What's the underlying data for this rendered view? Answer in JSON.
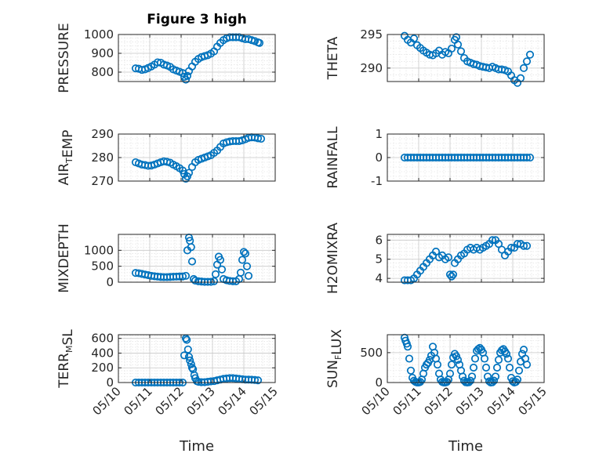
{
  "figure": {
    "title": "Figure 3 high",
    "xlabel": "Time"
  },
  "colors": {
    "marker": "#0072BD",
    "axis": "#262626"
  },
  "xtick_labels": [
    "05/10",
    "05/11",
    "05/12",
    "05/13",
    "05/14",
    "05/15"
  ],
  "panels": [
    {
      "id": "pressure",
      "ylabel_parts": [
        [
          "PRESSURE",
          ""
        ]
      ]
    },
    {
      "id": "theta",
      "ylabel_parts": [
        [
          "THETA",
          ""
        ]
      ]
    },
    {
      "id": "air-temp",
      "ylabel_parts": [
        [
          "AIR",
          ""
        ],
        [
          "T",
          "sub"
        ],
        [
          "EMP",
          ""
        ]
      ]
    },
    {
      "id": "rainfall",
      "ylabel_parts": [
        [
          "RAINFALL",
          ""
        ]
      ]
    },
    {
      "id": "mixdepth",
      "ylabel_parts": [
        [
          "MIXDEPTH",
          ""
        ]
      ]
    },
    {
      "id": "h2omixra",
      "ylabel_parts": [
        [
          "H2OMIXRA",
          ""
        ]
      ]
    },
    {
      "id": "terr-msl",
      "ylabel_parts": [
        [
          "TERR",
          ""
        ],
        [
          "M",
          "sub"
        ],
        [
          "SL",
          ""
        ]
      ]
    },
    {
      "id": "sun-flux",
      "ylabel_parts": [
        [
          "SUN",
          ""
        ],
        [
          "F",
          "sub"
        ],
        [
          "LUX",
          ""
        ]
      ]
    }
  ],
  "chart_data": [
    {
      "type": "scatter",
      "ylabel": "PRESSURE",
      "title": "Figure 3 high",
      "xlim": [
        0,
        5
      ],
      "ylim": [
        750,
        1000
      ],
      "yticks": [
        800,
        900,
        1000
      ],
      "grid": true,
      "x": [
        0.55,
        0.65,
        0.75,
        0.85,
        0.95,
        1.05,
        1.15,
        1.25,
        1.35,
        1.45,
        1.55,
        1.65,
        1.75,
        1.85,
        1.95,
        2.05,
        2.1,
        2.15,
        2.2,
        2.25,
        2.35,
        2.45,
        2.55,
        2.65,
        2.75,
        2.85,
        2.95,
        3.05,
        3.15,
        3.25,
        3.35,
        3.45,
        3.55,
        3.65,
        3.75,
        3.85,
        3.95,
        4.05,
        4.15,
        4.25,
        4.35,
        4.45,
        4.5
      ],
      "y": [
        820,
        818,
        812,
        815,
        822,
        830,
        840,
        852,
        850,
        840,
        835,
        828,
        815,
        808,
        802,
        795,
        775,
        760,
        780,
        805,
        830,
        855,
        870,
        880,
        885,
        890,
        898,
        910,
        935,
        955,
        970,
        980,
        985,
        985,
        985,
        985,
        980,
        975,
        975,
        970,
        965,
        958,
        955
      ]
    },
    {
      "type": "scatter",
      "ylabel": "THETA",
      "xlim": [
        0,
        5
      ],
      "ylim": [
        288,
        295
      ],
      "yticks": [
        290,
        295
      ],
      "grid": true,
      "x": [
        0.55,
        0.65,
        0.75,
        0.85,
        0.95,
        1.05,
        1.15,
        1.25,
        1.35,
        1.45,
        1.55,
        1.65,
        1.75,
        1.85,
        1.95,
        2.05,
        2.15,
        2.2,
        2.25,
        2.35,
        2.45,
        2.55,
        2.65,
        2.75,
        2.85,
        2.95,
        3.05,
        3.15,
        3.25,
        3.35,
        3.45,
        3.55,
        3.65,
        3.75,
        3.85,
        3.95,
        4.05,
        4.15,
        4.25,
        4.35,
        4.45,
        4.55
      ],
      "y": [
        294.8,
        294.2,
        293.8,
        294.4,
        293.4,
        293.0,
        292.6,
        292.3,
        292.0,
        291.9,
        292.2,
        292.6,
        292.0,
        292.4,
        292.2,
        292.9,
        294.2,
        294.6,
        293.5,
        292.5,
        291.5,
        291.0,
        290.8,
        290.6,
        290.5,
        290.3,
        290.2,
        290.1,
        290.0,
        290.2,
        290.0,
        289.8,
        289.8,
        289.7,
        289.5,
        288.9,
        288.2,
        287.8,
        288.5,
        290.0,
        291.0,
        292.0
      ]
    },
    {
      "type": "scatter",
      "ylabel": "AIR_TEMP",
      "xlim": [
        0,
        5
      ],
      "ylim": [
        270,
        290
      ],
      "yticks": [
        270,
        280,
        290
      ],
      "grid": true,
      "x": [
        0.55,
        0.65,
        0.75,
        0.85,
        0.95,
        1.05,
        1.15,
        1.25,
        1.35,
        1.45,
        1.55,
        1.65,
        1.75,
        1.85,
        1.95,
        2.05,
        2.1,
        2.15,
        2.2,
        2.25,
        2.35,
        2.45,
        2.55,
        2.65,
        2.75,
        2.85,
        2.95,
        3.05,
        3.15,
        3.25,
        3.35,
        3.45,
        3.55,
        3.65,
        3.75,
        3.85,
        3.95,
        4.05,
        4.15,
        4.25,
        4.35,
        4.45,
        4.55
      ],
      "y": [
        278,
        277.5,
        277,
        276.8,
        276.5,
        276.6,
        277,
        277.5,
        278,
        278.4,
        278.2,
        277.8,
        277,
        276.3,
        275.5,
        274.5,
        273,
        271,
        272,
        273.5,
        276,
        278,
        279,
        279.5,
        280,
        280.5,
        281,
        282,
        283,
        284.5,
        286,
        286.5,
        286.8,
        287,
        287,
        287,
        287.3,
        287.8,
        288.4,
        288.6,
        288.5,
        288.2,
        288.0
      ]
    },
    {
      "type": "scatter",
      "ylabel": "RAINFALL",
      "xlim": [
        0,
        5
      ],
      "ylim": [
        -1,
        1
      ],
      "yticks": [
        -1,
        0,
        1
      ],
      "grid": true,
      "x": [
        0.55,
        0.65,
        0.75,
        0.85,
        0.95,
        1.05,
        1.15,
        1.25,
        1.35,
        1.45,
        1.55,
        1.65,
        1.75,
        1.85,
        1.95,
        2.05,
        2.15,
        2.25,
        2.35,
        2.45,
        2.55,
        2.65,
        2.75,
        2.85,
        2.95,
        3.05,
        3.15,
        3.25,
        3.35,
        3.45,
        3.55,
        3.65,
        3.75,
        3.85,
        3.95,
        4.05,
        4.15,
        4.25,
        4.35,
        4.45,
        4.55
      ],
      "y": [
        0,
        0,
        0,
        0,
        0,
        0,
        0,
        0,
        0,
        0,
        0,
        0,
        0,
        0,
        0,
        0,
        0,
        0,
        0,
        0,
        0,
        0,
        0,
        0,
        0,
        0,
        0,
        0,
        0,
        0,
        0,
        0,
        0,
        0,
        0,
        0,
        0,
        0,
        0,
        0,
        0
      ]
    },
    {
      "type": "scatter",
      "ylabel": "MIXDEPTH",
      "xlim": [
        0,
        5
      ],
      "ylim": [
        0,
        1500
      ],
      "yticks": [
        0,
        500,
        1000
      ],
      "grid": true,
      "x": [
        0.55,
        0.65,
        0.75,
        0.85,
        0.95,
        1.05,
        1.15,
        1.25,
        1.35,
        1.45,
        1.55,
        1.65,
        1.75,
        1.85,
        1.95,
        2.05,
        2.15,
        2.2,
        2.25,
        2.28,
        2.32,
        2.35,
        2.4,
        2.45,
        2.55,
        2.65,
        2.75,
        2.85,
        2.95,
        3.05,
        3.1,
        3.15,
        3.2,
        3.25,
        3.3,
        3.35,
        3.45,
        3.55,
        3.65,
        3.75,
        3.85,
        3.9,
        3.95,
        4.0,
        4.05,
        4.1,
        4.15
      ],
      "y": [
        290,
        280,
        260,
        240,
        220,
        200,
        185,
        175,
        165,
        160,
        160,
        165,
        170,
        175,
        180,
        180,
        200,
        1000,
        1400,
        1300,
        1100,
        650,
        100,
        50,
        30,
        20,
        10,
        10,
        10,
        30,
        250,
        550,
        800,
        700,
        400,
        100,
        60,
        40,
        30,
        30,
        100,
        300,
        700,
        950,
        900,
        500,
        200
      ]
    },
    {
      "type": "scatter",
      "ylabel": "H2OMIXRA",
      "xlim": [
        0,
        5
      ],
      "ylim": [
        3.8,
        6.3
      ],
      "yticks": [
        4,
        5,
        6
      ],
      "grid": true,
      "x": [
        0.55,
        0.65,
        0.75,
        0.85,
        0.95,
        1.05,
        1.15,
        1.25,
        1.35,
        1.45,
        1.55,
        1.65,
        1.75,
        1.85,
        1.95,
        2.0,
        2.05,
        2.1,
        2.15,
        2.25,
        2.35,
        2.45,
        2.55,
        2.65,
        2.75,
        2.85,
        2.95,
        3.05,
        3.15,
        3.25,
        3.35,
        3.45,
        3.55,
        3.65,
        3.75,
        3.85,
        3.95,
        4.05,
        4.15,
        4.25,
        4.35,
        4.45
      ],
      "y": [
        3.9,
        3.9,
        3.9,
        4.0,
        4.2,
        4.4,
        4.6,
        4.8,
        5.0,
        5.2,
        5.4,
        5.1,
        5.2,
        5.0,
        5.1,
        4.2,
        4.1,
        4.2,
        4.8,
        5.0,
        5.2,
        5.3,
        5.5,
        5.6,
        5.5,
        5.6,
        5.5,
        5.6,
        5.7,
        5.8,
        6.0,
        6.0,
        5.8,
        5.5,
        5.2,
        5.4,
        5.6,
        5.6,
        5.8,
        5.8,
        5.7,
        5.7
      ]
    },
    {
      "type": "scatter",
      "ylabel": "TERR_MSL",
      "xlim": [
        0,
        5
      ],
      "ylim": [
        0,
        650
      ],
      "yticks": [
        0,
        200,
        400,
        600
      ],
      "grid": true,
      "xticks": [
        "05/10",
        "05/11",
        "05/12",
        "05/13",
        "05/14",
        "05/15"
      ],
      "x": [
        0.55,
        0.65,
        0.75,
        0.85,
        0.95,
        1.05,
        1.15,
        1.25,
        1.35,
        1.45,
        1.55,
        1.65,
        1.75,
        1.85,
        1.95,
        2.05,
        2.1,
        2.15,
        2.18,
        2.22,
        2.25,
        2.28,
        2.32,
        2.35,
        2.38,
        2.42,
        2.45,
        2.5,
        2.55,
        2.65,
        2.75,
        2.85,
        2.95,
        3.05,
        3.15,
        3.25,
        3.35,
        3.45,
        3.55,
        3.65,
        3.75,
        3.85,
        3.95,
        4.05,
        4.15,
        4.25,
        4.35,
        4.45
      ],
      "y": [
        0,
        0,
        0,
        0,
        0,
        0,
        0,
        0,
        0,
        0,
        0,
        0,
        0,
        0,
        0,
        0,
        370,
        600,
        580,
        450,
        350,
        300,
        250,
        200,
        180,
        100,
        60,
        20,
        10,
        5,
        5,
        10,
        15,
        20,
        30,
        40,
        50,
        55,
        60,
        60,
        55,
        50,
        45,
        40,
        40,
        38,
        35,
        30
      ]
    },
    {
      "type": "scatter",
      "ylabel": "SUN_FLUX",
      "xlim": [
        0,
        5
      ],
      "ylim": [
        0,
        800
      ],
      "yticks": [
        0,
        500
      ],
      "grid": true,
      "xticks": [
        "05/10",
        "05/11",
        "05/12",
        "05/13",
        "05/14",
        "05/15"
      ],
      "x": [
        0.55,
        0.58,
        0.62,
        0.65,
        0.7,
        0.75,
        0.8,
        0.85,
        0.9,
        0.95,
        1.0,
        1.05,
        1.1,
        1.15,
        1.2,
        1.25,
        1.3,
        1.35,
        1.4,
        1.45,
        1.5,
        1.55,
        1.6,
        1.65,
        1.7,
        1.75,
        1.8,
        1.85,
        1.9,
        1.95,
        2.0,
        2.05,
        2.1,
        2.15,
        2.2,
        2.25,
        2.3,
        2.35,
        2.4,
        2.45,
        2.5,
        2.55,
        2.6,
        2.65,
        2.7,
        2.75,
        2.8,
        2.85,
        2.9,
        2.95,
        3.0,
        3.05,
        3.1,
        3.15,
        3.2,
        3.25,
        3.3,
        3.35,
        3.4,
        3.45,
        3.5,
        3.55,
        3.6,
        3.65,
        3.7,
        3.75,
        3.8,
        3.85,
        3.9,
        3.95,
        4.0,
        4.05,
        4.1,
        4.15,
        4.2,
        4.25,
        4.3,
        4.35,
        4.4,
        4.45
      ],
      "y": [
        750,
        700,
        650,
        600,
        400,
        200,
        80,
        30,
        10,
        0,
        0,
        10,
        50,
        150,
        250,
        300,
        330,
        380,
        450,
        600,
        500,
        400,
        300,
        150,
        50,
        10,
        0,
        0,
        10,
        50,
        150,
        300,
        420,
        480,
        440,
        380,
        300,
        200,
        100,
        30,
        5,
        0,
        5,
        30,
        100,
        250,
        400,
        530,
        560,
        580,
        550,
        500,
        400,
        250,
        100,
        20,
        0,
        5,
        30,
        100,
        250,
        380,
        500,
        540,
        560,
        520,
        480,
        400,
        250,
        80,
        20,
        0,
        10,
        50,
        200,
        350,
        480,
        550,
        400,
        300
      ]
    }
  ]
}
